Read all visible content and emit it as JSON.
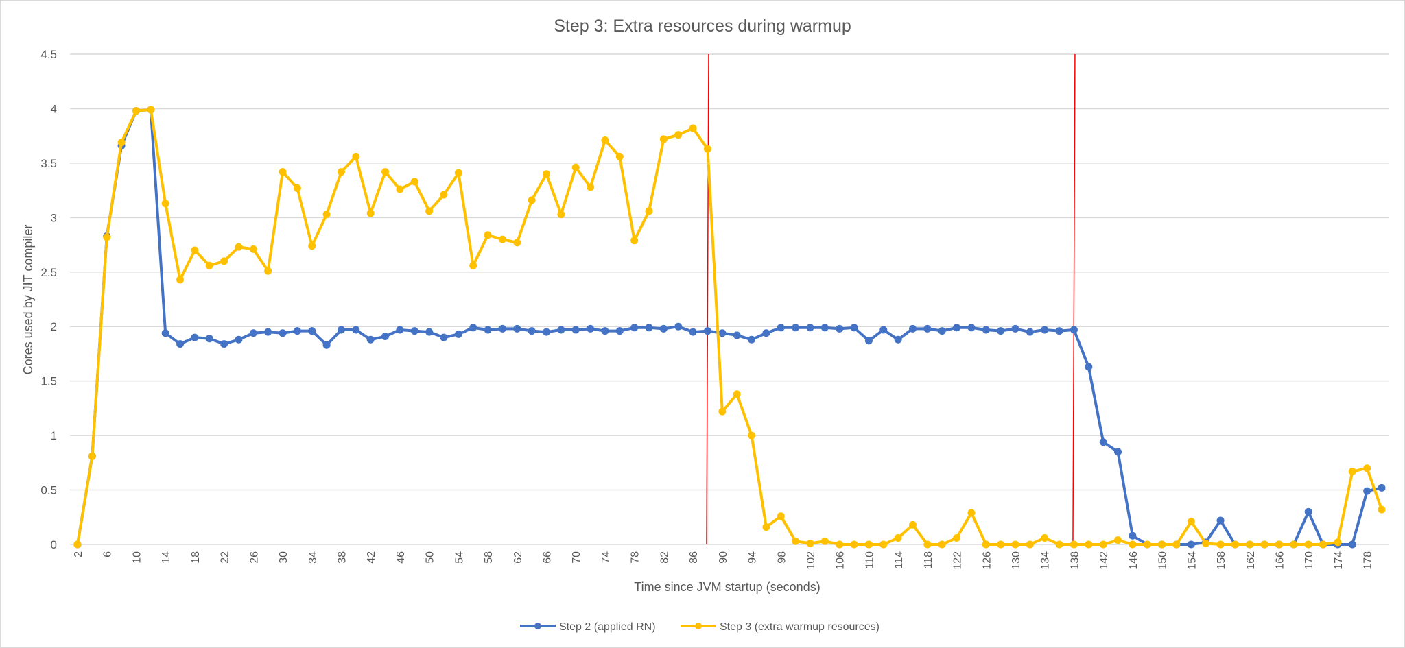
{
  "chart_data": {
    "type": "line",
    "title": "Step 3: Extra resources during warmup",
    "xlabel": "Time since JVM startup (seconds)",
    "ylabel": "Cores used by JIT compiler",
    "ylim": [
      0,
      4.5
    ],
    "yticks": [
      "0",
      "0.5",
      "1",
      "1.5",
      "2",
      "2.5",
      "3",
      "3.5",
      "4",
      "4.5"
    ],
    "xtick_labels": [
      "2",
      "6",
      "10",
      "14",
      "18",
      "22",
      "26",
      "30",
      "34",
      "38",
      "42",
      "46",
      "50",
      "54",
      "58",
      "62",
      "66",
      "70",
      "74",
      "78",
      "82",
      "86",
      "90",
      "94",
      "98",
      "102",
      "106",
      "110",
      "114",
      "118",
      "122",
      "126",
      "130",
      "134",
      "138",
      "142",
      "146",
      "150",
      "154",
      "158",
      "162",
      "166",
      "170",
      "174",
      "178"
    ],
    "grid": true,
    "legend_position": "bottom",
    "x_start": 2,
    "x_step": 2,
    "vertical_markers": [
      88,
      138
    ],
    "colors": {
      "step2": "#4472C4",
      "step3": "#FFC000",
      "marker_line": "#FF0000"
    },
    "series": [
      {
        "name": "Step 2 (applied RN)",
        "color": "#4472C4",
        "values": [
          0,
          0.81,
          2.83,
          3.66,
          3.98,
          3.99,
          1.94,
          1.84,
          1.9,
          1.89,
          1.84,
          1.88,
          1.94,
          1.95,
          1.94,
          1.96,
          1.96,
          1.83,
          1.97,
          1.97,
          1.88,
          1.91,
          1.97,
          1.96,
          1.95,
          1.9,
          1.93,
          1.99,
          1.97,
          1.98,
          1.98,
          1.96,
          1.95,
          1.97,
          1.97,
          1.98,
          1.96,
          1.96,
          1.99,
          1.99,
          1.98,
          2.0,
          1.95,
          1.96,
          1.94,
          1.92,
          1.88,
          1.94,
          1.99,
          1.99,
          1.99,
          1.99,
          1.98,
          1.99,
          1.87,
          1.97,
          1.88,
          1.98,
          1.98,
          1.96,
          1.99,
          1.99,
          1.97,
          1.96,
          1.98,
          1.95,
          1.97,
          1.96,
          1.97,
          1.63,
          0.94,
          0.85,
          0.08,
          0,
          0,
          0,
          0,
          0.02,
          0.22,
          0,
          0,
          0,
          0,
          0,
          0.3,
          0,
          0,
          0,
          0.49,
          0.52
        ]
      },
      {
        "name": "Step 3 (extra warmup resources)",
        "color": "#FFC000",
        "values": [
          0,
          0.81,
          2.82,
          3.69,
          3.98,
          3.99,
          3.13,
          2.43,
          2.7,
          2.56,
          2.6,
          2.73,
          2.71,
          2.51,
          3.42,
          3.27,
          2.74,
          3.03,
          3.42,
          3.56,
          3.04,
          3.42,
          3.26,
          3.33,
          3.06,
          3.21,
          3.41,
          2.56,
          2.84,
          2.8,
          2.77,
          3.16,
          3.4,
          3.03,
          3.46,
          3.28,
          3.71,
          3.56,
          2.79,
          3.06,
          3.72,
          3.76,
          3.82,
          3.63,
          1.22,
          1.38,
          1.0,
          0.16,
          0.26,
          0.03,
          0.01,
          0.03,
          0,
          0,
          0,
          0,
          0.06,
          0.18,
          0,
          0,
          0.06,
          0.29,
          0,
          0,
          0,
          0,
          0.06,
          0,
          0,
          0,
          0,
          0.04,
          0,
          0,
          0,
          0,
          0.21,
          0.01,
          0,
          0,
          0,
          0,
          0,
          0,
          0,
          0,
          0.02,
          0.67,
          0.7,
          0.32
        ]
      }
    ]
  }
}
